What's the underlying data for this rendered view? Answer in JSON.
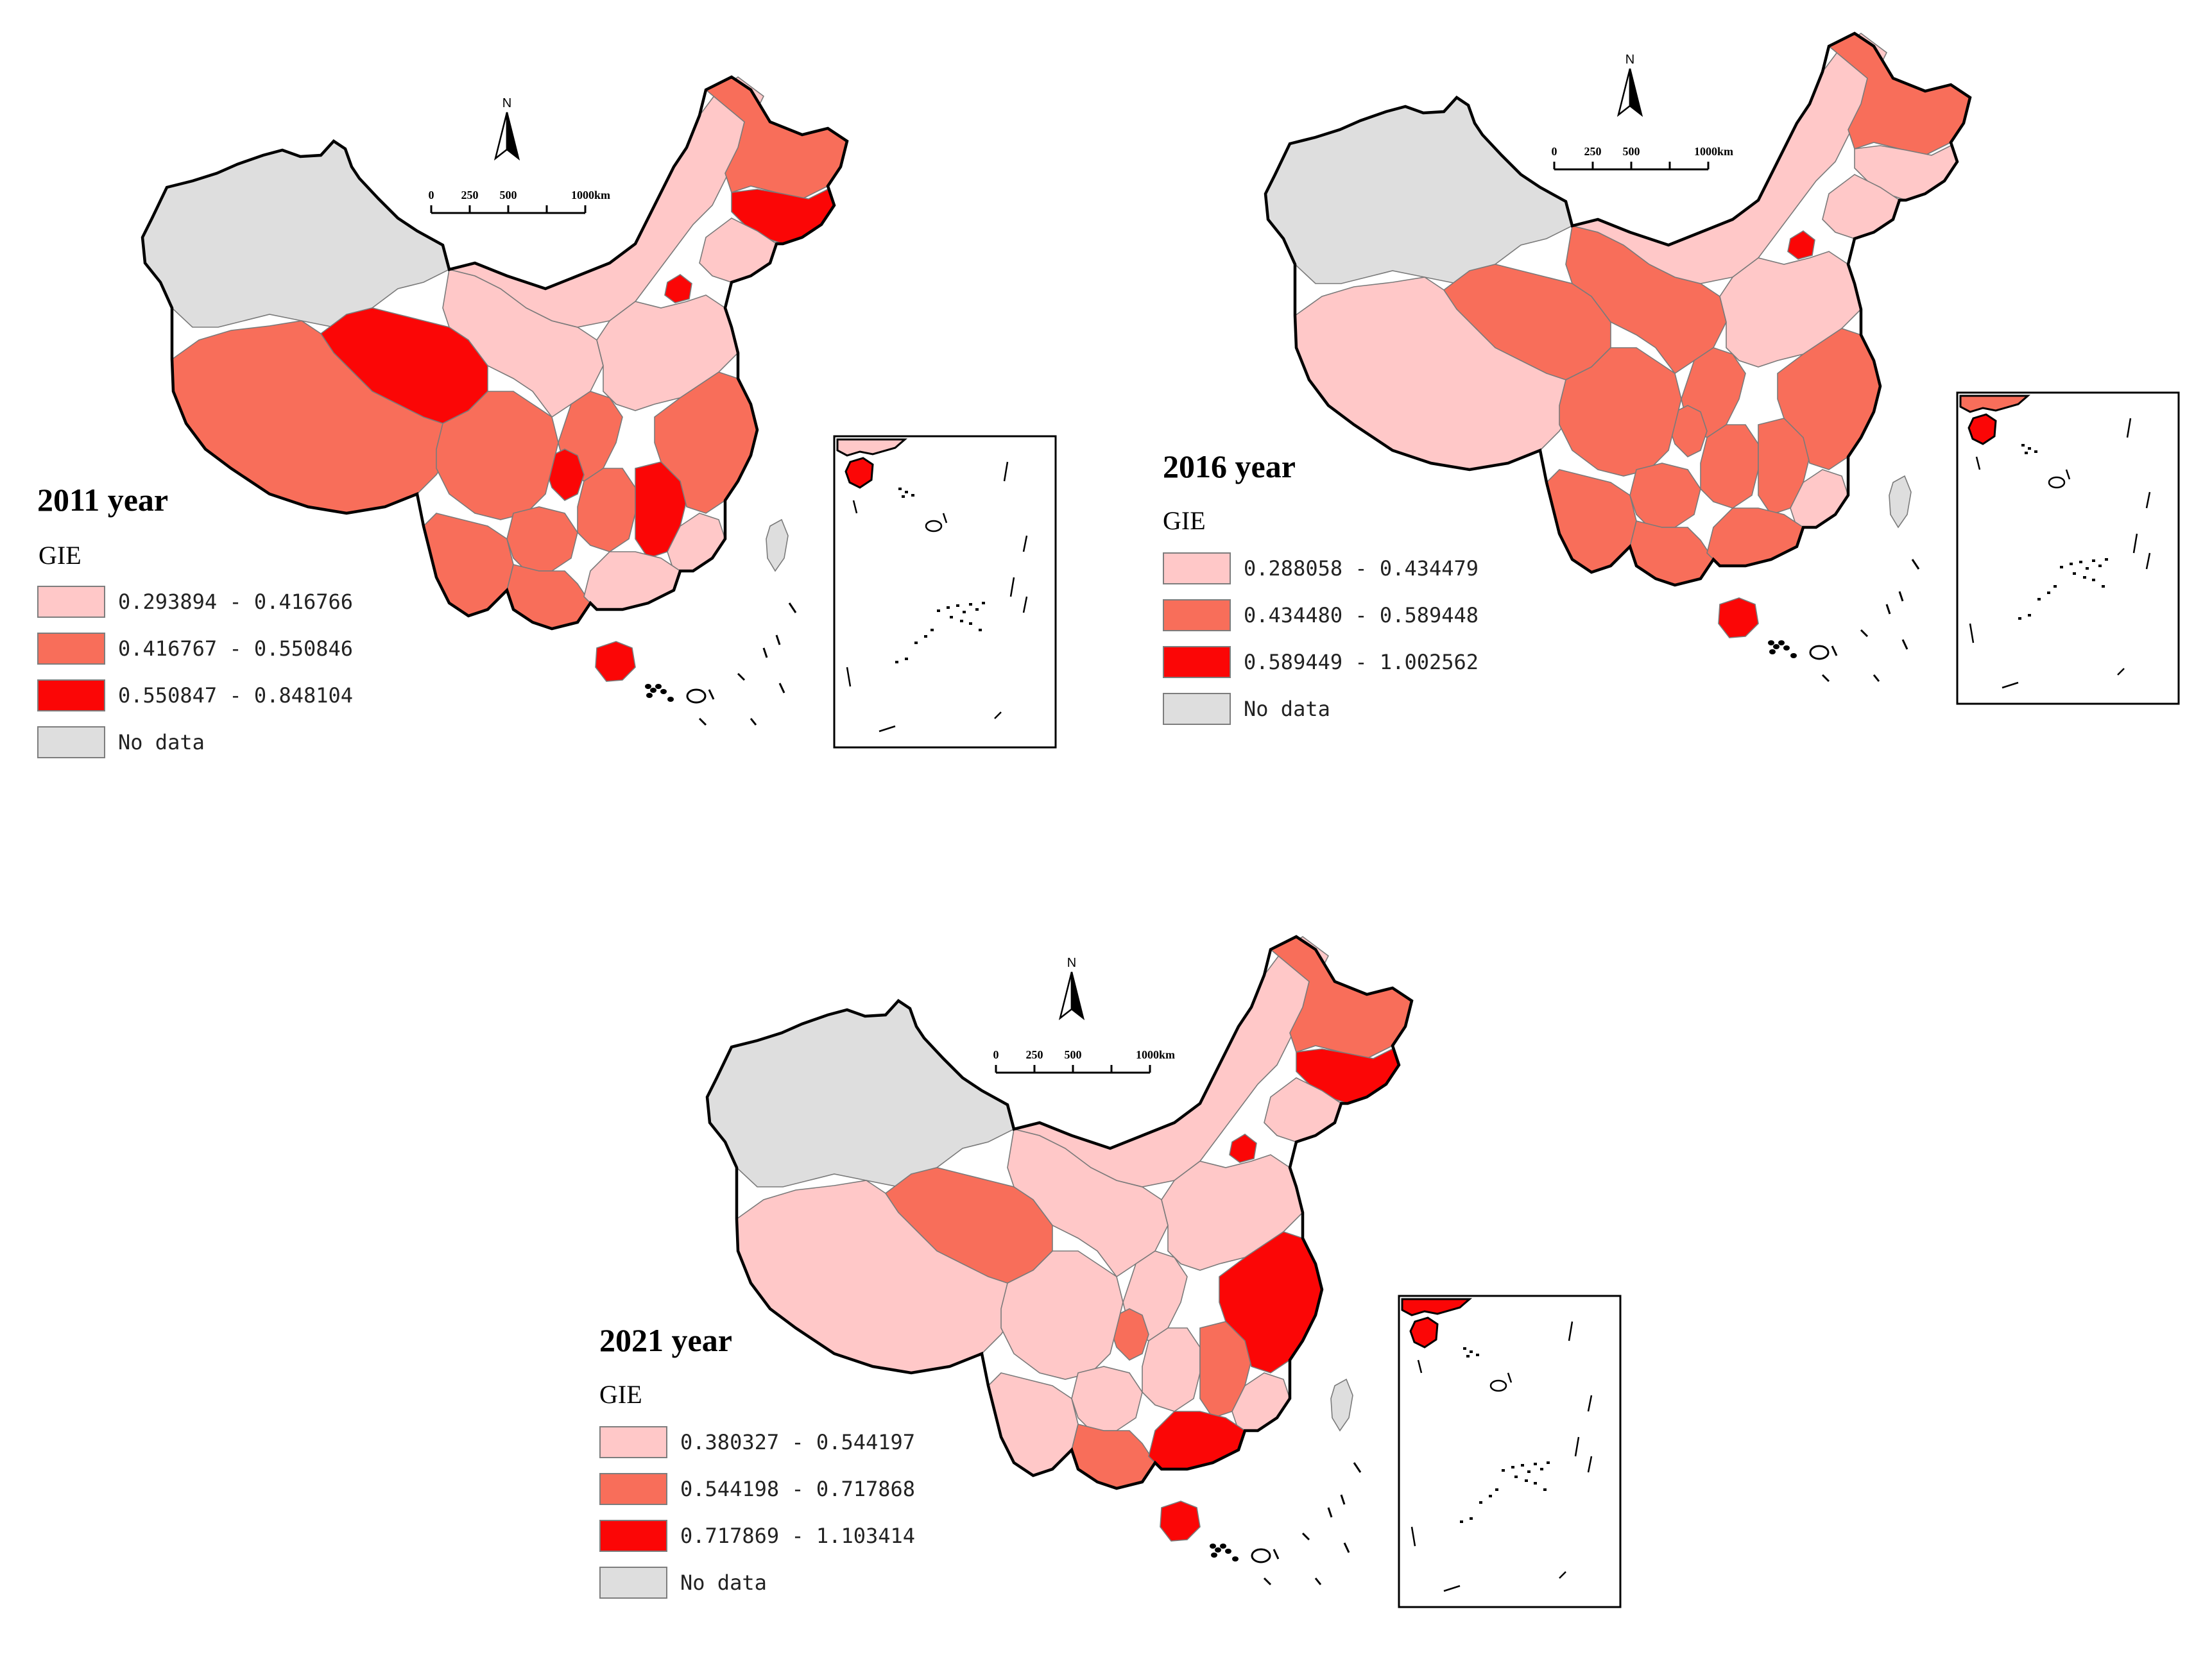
{
  "colors": {
    "no_data": "#dedede",
    "class_1": "#ffc8c8",
    "class_2": "#f86e5a",
    "class_3": "#fb0606",
    "boundary": "#000000",
    "province_line": "#7a7a7a"
  },
  "north_arrow": {
    "label": "N"
  },
  "scale_bar": {
    "ticks": [
      "0",
      "250",
      "500",
      "1000km"
    ]
  },
  "panels": [
    {
      "title": "2011 year",
      "legend_title": "GIE",
      "legend": [
        {
          "label": "0.293894 - 0.416766",
          "class": "class_1"
        },
        {
          "label": "0.416767 - 0.550846",
          "class": "class_2"
        },
        {
          "label": "0.550847 - 0.848104",
          "class": "class_3"
        },
        {
          "label": "No data",
          "class": "no_data"
        }
      ],
      "regions": {
        "xinjiang": "no_data",
        "tibet": "class_2",
        "qinghai": "class_3",
        "gansu": "class_1",
        "inner_mongolia": "class_1",
        "heilongjiang": "class_2",
        "jilin": "class_3",
        "liaoning": "class_1",
        "beijing": "class_3",
        "north_plain": "class_1",
        "shaanxi": "class_2",
        "chongqing": "class_3",
        "sichuan": "class_2",
        "yunnan": "class_2",
        "guizhou": "class_2",
        "guangxi": "class_2",
        "hunan": "class_2",
        "jiangxi": "class_3",
        "fujian": "class_1",
        "guangdong": "class_1",
        "east_coast": "class_2",
        "hainan": "class_3",
        "taiwan": "no_data"
      }
    },
    {
      "title": "2016 year",
      "legend_title": "GIE",
      "legend": [
        {
          "label": "0.288058 - 0.434479",
          "class": "class_1"
        },
        {
          "label": "0.434480 - 0.589448",
          "class": "class_2"
        },
        {
          "label": "0.589449 - 1.002562",
          "class": "class_3"
        },
        {
          "label": "No data",
          "class": "no_data"
        }
      ],
      "regions": {
        "xinjiang": "no_data",
        "tibet": "class_1",
        "qinghai": "class_2",
        "gansu": "class_2",
        "inner_mongolia": "class_1",
        "heilongjiang": "class_2",
        "jilin": "class_1",
        "liaoning": "class_1",
        "beijing": "class_3",
        "north_plain": "class_1",
        "shaanxi": "class_2",
        "chongqing": "class_2",
        "sichuan": "class_2",
        "yunnan": "class_2",
        "guizhou": "class_2",
        "guangxi": "class_2",
        "hunan": "class_2",
        "jiangxi": "class_2",
        "fujian": "class_1",
        "guangdong": "class_2",
        "east_coast": "class_2",
        "hainan": "class_3",
        "taiwan": "no_data"
      }
    },
    {
      "title": "2021 year",
      "legend_title": "GIE",
      "legend": [
        {
          "label": "0.380327 - 0.544197",
          "class": "class_1"
        },
        {
          "label": "0.544198 - 0.717868",
          "class": "class_2"
        },
        {
          "label": "0.717869 - 1.103414",
          "class": "class_3"
        },
        {
          "label": "No data",
          "class": "no_data"
        }
      ],
      "regions": {
        "xinjiang": "no_data",
        "tibet": "class_1",
        "qinghai": "class_2",
        "gansu": "class_1",
        "inner_mongolia": "class_1",
        "heilongjiang": "class_2",
        "jilin": "class_3",
        "liaoning": "class_1",
        "beijing": "class_3",
        "north_plain": "class_1",
        "shaanxi": "class_1",
        "chongqing": "class_2",
        "sichuan": "class_1",
        "yunnan": "class_1",
        "guizhou": "class_1",
        "guangxi": "class_2",
        "hunan": "class_1",
        "jiangxi": "class_2",
        "fujian": "class_1",
        "guangdong": "class_3",
        "east_coast": "class_3",
        "hainan": "class_3",
        "taiwan": "no_data"
      }
    }
  ]
}
